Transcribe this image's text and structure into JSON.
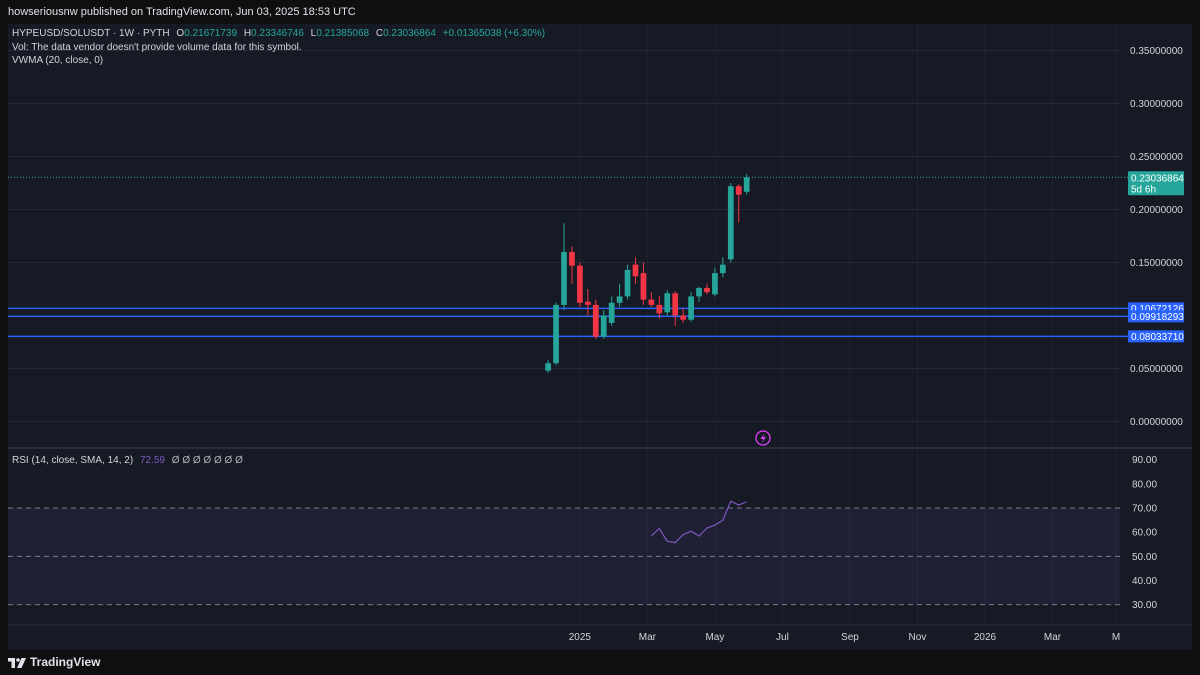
{
  "header": {
    "published": "howseriousnw published on TradingView.com, Jun 03, 2025 18:53 UTC"
  },
  "legend": {
    "symbol": "HYPEUSD/SOLUSDT · 1W · PYTH",
    "o_label": "O",
    "o": "0.21671739",
    "h_label": "H",
    "h": "0.23346746",
    "l_label": "L",
    "l": "0.21385068",
    "c_label": "C",
    "c": "0.23036864",
    "change": "+0.01365038 (+6.30%)",
    "vol": "Vol: The data vendor doesn't provide volume data for this symbol.",
    "vwma": "VWMA (20, close, 0)"
  },
  "rsi_legend": {
    "label": "RSI (14, close, SMA, 14, 2)",
    "value": "72.59",
    "empties": "Ø Ø Ø Ø Ø Ø Ø"
  },
  "price_badge": {
    "value": "0.23036864",
    "countdown": "5d 6h"
  },
  "level_labels": [
    "0.10672126",
    "0.09918293",
    "0.08033710"
  ],
  "footer": {
    "brand": "TradingView"
  },
  "colors": {
    "bg": "#161a25",
    "up": "#26a69a",
    "down": "#f23645",
    "level": "#2962ff",
    "rsi": "#7e57c2",
    "grid": "#262a35",
    "text": "#d1d4dc"
  },
  "chart_data": [
    {
      "type": "candlestick",
      "title": "HYPEUSD/SOLUSDT · 1W · PYTH",
      "y_axis": {
        "min": -0.025,
        "max": 0.375,
        "ticks": [
          0.0,
          0.05,
          0.1,
          0.15,
          0.2,
          0.25,
          0.3,
          0.35
        ],
        "tick_labels": [
          "0.00000000",
          "0.05000000",
          "0.10000000",
          "0.15000000",
          "0.20000000",
          "0.25000000",
          "0.30000000",
          "0.35000000"
        ]
      },
      "x_axis": {
        "labels": [
          "2025",
          "Mar",
          "May",
          "Jul",
          "Sep",
          "Nov",
          "2026",
          "Mar",
          "M"
        ],
        "label_weeks": [
          4,
          12.5,
          21,
          29.5,
          38,
          46.5,
          55,
          63.5,
          71.5
        ],
        "week_range": [
          -68,
          72
        ]
      },
      "candles": [
        {
          "w": 0,
          "o": 0.048,
          "h": 0.058,
          "l": 0.046,
          "c": 0.055
        },
        {
          "w": 1,
          "o": 0.055,
          "h": 0.112,
          "l": 0.053,
          "c": 0.11
        },
        {
          "w": 2,
          "o": 0.11,
          "h": 0.187,
          "l": 0.105,
          "c": 0.16
        },
        {
          "w": 3,
          "o": 0.16,
          "h": 0.165,
          "l": 0.13,
          "c": 0.147
        },
        {
          "w": 4,
          "o": 0.147,
          "h": 0.15,
          "l": 0.108,
          "c": 0.112
        },
        {
          "w": 5,
          "o": 0.113,
          "h": 0.125,
          "l": 0.1,
          "c": 0.11
        },
        {
          "w": 6,
          "o": 0.11,
          "h": 0.115,
          "l": 0.078,
          "c": 0.08
        },
        {
          "w": 7,
          "o": 0.08,
          "h": 0.105,
          "l": 0.078,
          "c": 0.1
        },
        {
          "w": 8,
          "o": 0.093,
          "h": 0.118,
          "l": 0.09,
          "c": 0.112
        },
        {
          "w": 9,
          "o": 0.112,
          "h": 0.13,
          "l": 0.108,
          "c": 0.118
        },
        {
          "w": 10,
          "o": 0.118,
          "h": 0.148,
          "l": 0.115,
          "c": 0.143
        },
        {
          "w": 11,
          "o": 0.148,
          "h": 0.155,
          "l": 0.13,
          "c": 0.137
        },
        {
          "w": 12,
          "o": 0.14,
          "h": 0.15,
          "l": 0.11,
          "c": 0.115
        },
        {
          "w": 13,
          "o": 0.115,
          "h": 0.122,
          "l": 0.108,
          "c": 0.11
        },
        {
          "w": 14,
          "o": 0.11,
          "h": 0.118,
          "l": 0.097,
          "c": 0.102
        },
        {
          "w": 15,
          "o": 0.103,
          "h": 0.124,
          "l": 0.1,
          "c": 0.121
        },
        {
          "w": 16,
          "o": 0.121,
          "h": 0.123,
          "l": 0.09,
          "c": 0.1
        },
        {
          "w": 17,
          "o": 0.1,
          "h": 0.107,
          "l": 0.093,
          "c": 0.096
        },
        {
          "w": 18,
          "o": 0.096,
          "h": 0.122,
          "l": 0.094,
          "c": 0.118
        },
        {
          "w": 19,
          "o": 0.118,
          "h": 0.127,
          "l": 0.113,
          "c": 0.126
        },
        {
          "w": 20,
          "o": 0.126,
          "h": 0.13,
          "l": 0.12,
          "c": 0.122
        },
        {
          "w": 21,
          "o": 0.12,
          "h": 0.145,
          "l": 0.118,
          "c": 0.14
        },
        {
          "w": 22,
          "o": 0.14,
          "h": 0.155,
          "l": 0.136,
          "c": 0.148
        },
        {
          "w": 23,
          "o": 0.153,
          "h": 0.225,
          "l": 0.15,
          "c": 0.222
        },
        {
          "w": 24,
          "o": 0.222,
          "h": 0.224,
          "l": 0.188,
          "c": 0.214
        },
        {
          "w": 25,
          "o": 0.2167,
          "h": 0.2335,
          "l": 0.2139,
          "c": 0.2304
        }
      ],
      "last_price": 0.23036864,
      "horizontal_levels": [
        0.10672126,
        0.09918293,
        0.0803371
      ]
    },
    {
      "type": "line",
      "title": "RSI (14, close, SMA, 14, 2)",
      "y_axis": {
        "min": 22,
        "max": 94,
        "ticks": [
          30,
          40,
          50,
          60,
          70,
          80,
          90
        ],
        "tick_labels": [
          "30.00",
          "40.00",
          "50.00",
          "60.00",
          "70.00",
          "80.00",
          "90.00"
        ]
      },
      "bands": {
        "upper": 70,
        "middle": 50,
        "lower": 30
      },
      "series": [
        {
          "name": "RSI",
          "x": [
            13,
            14,
            15,
            16,
            17,
            18,
            19,
            20,
            21,
            22,
            23,
            24,
            25
          ],
          "values": [
            58.5,
            61.5,
            56.2,
            55.7,
            59.0,
            60.4,
            58.4,
            61.7,
            62.9,
            65.0,
            72.8,
            71.2,
            72.59
          ]
        }
      ]
    }
  ]
}
